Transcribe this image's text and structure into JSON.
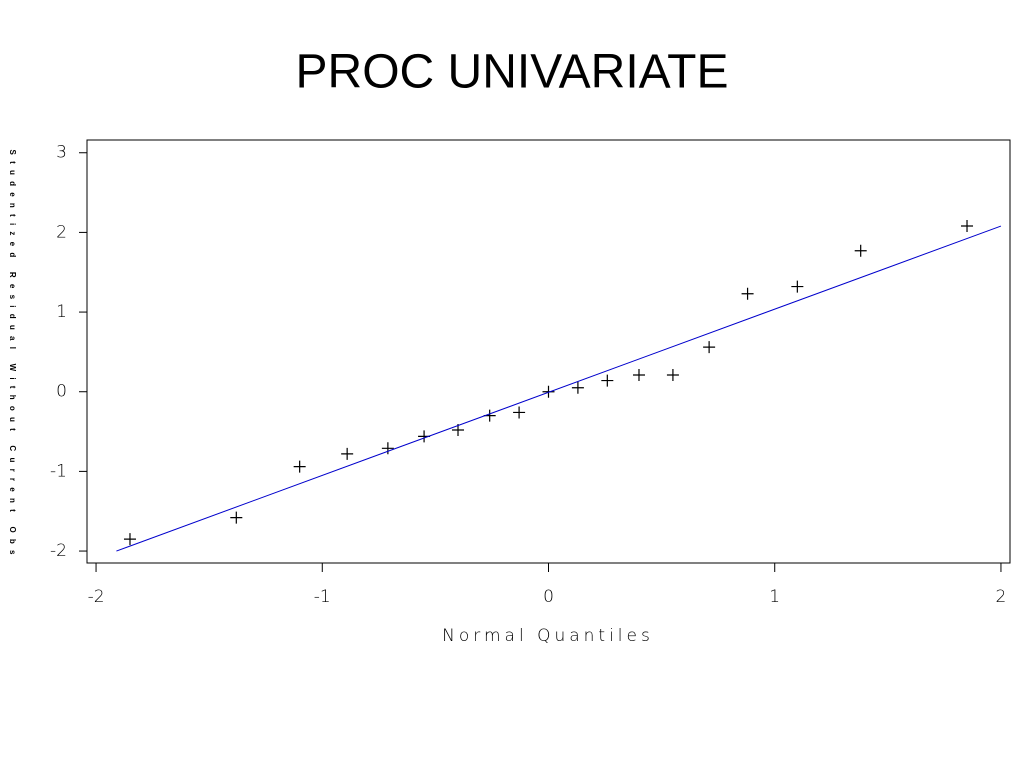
{
  "chart_data": {
    "type": "scatter",
    "title": "PROC UNIVARIATE",
    "x_label": "Normal Quantiles",
    "y_label": "Studentized Residual Without Current Obs",
    "xlim": [
      -2.04,
      2.04
    ],
    "ylim": [
      -2.15,
      3.16
    ],
    "xticks": [
      -2,
      -1,
      0,
      1,
      2
    ],
    "yticks": [
      -2,
      -1,
      0,
      1,
      2,
      3
    ],
    "grid": false,
    "series": [
      {
        "type": "scatter",
        "marker": "+",
        "color": "#000000",
        "x": [
          -1.85,
          -1.38,
          -1.1,
          -0.89,
          -0.71,
          -0.55,
          -0.4,
          -0.26,
          -0.13,
          0.0,
          0.13,
          0.26,
          0.4,
          0.55,
          0.71,
          0.88,
          1.1,
          1.38,
          1.85
        ],
        "values": [
          -1.85,
          -1.58,
          -0.94,
          -0.78,
          -0.71,
          -0.56,
          -0.48,
          -0.3,
          -0.26,
          0.0,
          0.05,
          0.14,
          0.21,
          0.21,
          0.56,
          1.23,
          1.32,
          1.77,
          2.08
        ]
      },
      {
        "type": "line",
        "color": "#0000cc",
        "x": [
          -1.91,
          2.0
        ],
        "values": [
          -2.0,
          2.08
        ]
      }
    ]
  }
}
